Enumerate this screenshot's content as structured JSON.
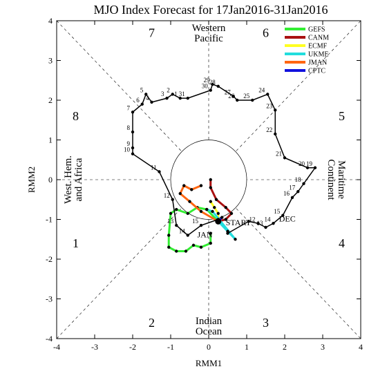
{
  "chart_data": {
    "type": "line",
    "title": "MJO Index Forecast for 17Jan2016-31Jan2016",
    "xlabel": "RMM1",
    "ylabel": "RMM2",
    "xlim": [
      -4,
      4
    ],
    "ylim": [
      -4,
      4
    ],
    "xticks": [
      "-4",
      "-3",
      "-2",
      "-1",
      "0",
      "1",
      "2",
      "3",
      "4"
    ],
    "yticks": [
      "-4",
      "-3",
      "-2",
      "-1",
      "0",
      "1",
      "2",
      "3",
      "4"
    ],
    "phase_numbers": [
      {
        "label": "1",
        "x": -3.5,
        "y": -1.6
      },
      {
        "label": "2",
        "x": -1.5,
        "y": -3.6
      },
      {
        "label": "3",
        "x": 1.5,
        "y": -3.6
      },
      {
        "label": "4",
        "x": 3.5,
        "y": -1.6
      },
      {
        "label": "5",
        "x": 3.5,
        "y": 1.6
      },
      {
        "label": "6",
        "x": 1.5,
        "y": 3.7
      },
      {
        "label": "7",
        "x": -1.5,
        "y": 3.7
      },
      {
        "label": "8",
        "x": -3.5,
        "y": 1.6
      }
    ],
    "regions": {
      "western_pacific": [
        "Western",
        "Pacific"
      ],
      "maritime_continent": [
        "Maritime",
        "Continent"
      ],
      "indian_ocean": [
        "Indian",
        "Ocean"
      ],
      "west_hem": [
        "West. Hem.",
        "and Africa"
      ]
    },
    "legend_position": "top-right",
    "legend": [
      {
        "name": "GEFS",
        "color": "#33ee33"
      },
      {
        "name": "CANM",
        "color": "#aa1111"
      },
      {
        "name": "ECMF",
        "color": "#ffff22"
      },
      {
        "name": "UKME",
        "color": "#22dddd"
      },
      {
        "name": "JMAN",
        "color": "#ff6611"
      },
      {
        "name": "CPTC",
        "color": "#1111dd"
      }
    ],
    "observed": {
      "color": "#000000",
      "points": [
        {
          "x": 0.5,
          "y": -1.35,
          "label": ""
        },
        {
          "x": 1.05,
          "y": -1.05,
          "label": ""
        },
        {
          "x": 1.3,
          "y": -1.1,
          "label": "12"
        },
        {
          "x": 1.5,
          "y": -1.2,
          "label": "13"
        },
        {
          "x": 1.7,
          "y": -1.1,
          "label": "14"
        },
        {
          "x": 1.95,
          "y": -0.9,
          "label": "15"
        },
        {
          "x": 2.2,
          "y": -0.45,
          "label": "16"
        },
        {
          "x": 2.35,
          "y": -0.3,
          "label": "17"
        },
        {
          "x": 2.5,
          "y": -0.1,
          "label": "18"
        },
        {
          "x": 2.8,
          "y": 0.3,
          "label": "19"
        },
        {
          "x": 2.6,
          "y": 0.3,
          "label": "20"
        },
        {
          "x": 2.0,
          "y": 0.55,
          "label": "21"
        },
        {
          "x": 1.75,
          "y": 1.15,
          "label": "22"
        },
        {
          "x": 1.75,
          "y": 1.75,
          "label": "23"
        },
        {
          "x": 1.55,
          "y": 2.15,
          "label": "24"
        },
        {
          "x": 1.15,
          "y": 2.0,
          "label": "25"
        },
        {
          "x": 0.75,
          "y": 2.0,
          "label": "26"
        },
        {
          "x": 0.65,
          "y": 2.1,
          "label": "27"
        },
        {
          "x": 0.25,
          "y": 2.35,
          "label": "28"
        },
        {
          "x": 0.1,
          "y": 2.4,
          "label": "29"
        },
        {
          "x": 0.05,
          "y": 2.25,
          "label": "30"
        },
        {
          "x": -0.55,
          "y": 2.05,
          "label": "31"
        },
        {
          "x": -0.75,
          "y": 2.05,
          "label": "1"
        },
        {
          "x": -0.95,
          "y": 2.15,
          "label": "2"
        },
        {
          "x": -1.1,
          "y": 2.05,
          "label": "3"
        },
        {
          "x": -1.5,
          "y": 1.95,
          "label": "4"
        },
        {
          "x": -1.65,
          "y": 2.15,
          "label": "5"
        },
        {
          "x": -1.75,
          "y": 1.9,
          "label": "6"
        },
        {
          "x": -2.0,
          "y": 1.7,
          "label": "7"
        },
        {
          "x": -2.0,
          "y": 1.2,
          "label": "8"
        },
        {
          "x": -2.0,
          "y": 0.8,
          "label": "9"
        },
        {
          "x": -2.0,
          "y": 0.65,
          "label": "10"
        },
        {
          "x": -1.3,
          "y": 0.2,
          "label": "11"
        },
        {
          "x": -0.95,
          "y": -0.5,
          "label": "12"
        },
        {
          "x": -0.85,
          "y": -1.15,
          "label": "13"
        },
        {
          "x": -0.55,
          "y": -1.4,
          "label": "14"
        },
        {
          "x": -0.2,
          "y": -1.15,
          "label": "15"
        },
        {
          "x": 0.25,
          "y": -1.0,
          "label": ""
        }
      ],
      "start_point": {
        "x": 0.25,
        "y": -1.05
      },
      "annotations": [
        {
          "text": "START",
          "x": 0.45,
          "y": -1.15
        },
        {
          "text": "DEC",
          "x": 1.85,
          "y": -1.05
        },
        {
          "text": "JAN",
          "x": -0.3,
          "y": -1.45
        }
      ]
    },
    "series": [
      {
        "name": "GEFS",
        "color": "#33ee33",
        "values": [
          {
            "x": 0.25,
            "y": -1.05
          },
          {
            "x": -0.05,
            "y": -0.75
          },
          {
            "x": -0.3,
            "y": -0.7
          },
          {
            "x": -0.55,
            "y": -0.85
          },
          {
            "x": -0.85,
            "y": -0.75
          },
          {
            "x": -1.0,
            "y": -0.85
          },
          {
            "x": -1.05,
            "y": -1.4
          },
          {
            "x": -1.05,
            "y": -1.7
          },
          {
            "x": -0.85,
            "y": -1.8
          },
          {
            "x": -0.6,
            "y": -1.8
          },
          {
            "x": -0.4,
            "y": -1.65
          },
          {
            "x": -0.2,
            "y": -1.7
          },
          {
            "x": 0.05,
            "y": -1.6
          },
          {
            "x": 0.05,
            "y": -1.35
          }
        ]
      },
      {
        "name": "CANM",
        "color": "#aa1111",
        "values": [
          {
            "x": 0.25,
            "y": -1.05
          },
          {
            "x": 0.45,
            "y": -1.0
          },
          {
            "x": 0.6,
            "y": -0.85
          },
          {
            "x": 0.45,
            "y": -0.7
          },
          {
            "x": 0.2,
            "y": -0.5
          },
          {
            "x": 0.05,
            "y": -0.2
          },
          {
            "x": 0.05,
            "y": 0.0
          }
        ]
      },
      {
        "name": "ECMF",
        "color": "#ffff22",
        "values": [
          {
            "x": 0.25,
            "y": -1.05
          },
          {
            "x": 0.25,
            "y": -0.85
          },
          {
            "x": 0.15,
            "y": -0.7
          },
          {
            "x": 0.05,
            "y": -0.55
          }
        ]
      },
      {
        "name": "UKME",
        "color": "#22dddd",
        "values": [
          {
            "x": 0.25,
            "y": -1.05
          },
          {
            "x": 0.5,
            "y": -1.3
          },
          {
            "x": 0.7,
            "y": -1.5
          },
          {
            "x": 0.1,
            "y": -0.8
          },
          {
            "x": -0.05,
            "y": -0.75
          }
        ]
      },
      {
        "name": "JMAN",
        "color": "#ff6611",
        "values": [
          {
            "x": 0.25,
            "y": -1.05
          },
          {
            "x": -0.2,
            "y": -0.8
          },
          {
            "x": -0.5,
            "y": -0.55
          },
          {
            "x": -0.75,
            "y": -0.35
          },
          {
            "x": -0.65,
            "y": -0.15
          },
          {
            "x": -0.45,
            "y": -0.25
          },
          {
            "x": -0.2,
            "y": -0.15
          }
        ]
      },
      {
        "name": "CPTC",
        "color": "#1111dd",
        "values": [
          {
            "x": 0.25,
            "y": -1.05
          },
          {
            "x": 0.35,
            "y": -0.95
          }
        ]
      }
    ]
  }
}
